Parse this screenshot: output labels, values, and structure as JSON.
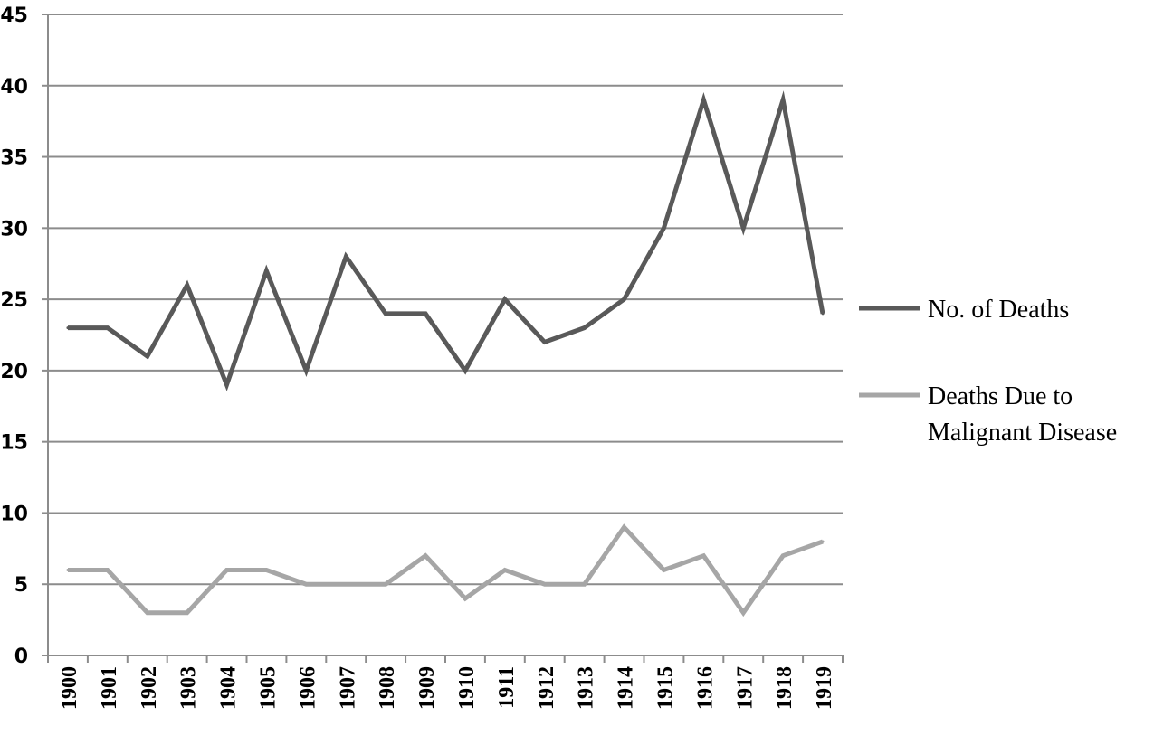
{
  "chart_data": {
    "type": "line",
    "title": "",
    "xlabel": "",
    "ylabel": "",
    "ylim": [
      0,
      45
    ],
    "yticks": [
      0,
      5,
      10,
      15,
      20,
      25,
      30,
      35,
      40,
      45
    ],
    "grid": true,
    "legend_position": "right",
    "categories": [
      "1900",
      "1901",
      "1902",
      "1903",
      "1904",
      "1905",
      "1906",
      "1907",
      "1908",
      "1909",
      "1910",
      "1911",
      "1912",
      "1913",
      "1914",
      "1915",
      "1916",
      "1917",
      "1918",
      "1919"
    ],
    "series": [
      {
        "name": "No. of Deaths",
        "name_lines": [
          "No. of Deaths"
        ],
        "color": "#595959",
        "values": [
          23,
          23,
          21,
          26,
          19,
          27,
          20,
          28,
          24,
          24,
          20,
          25,
          22,
          23,
          25,
          30,
          39,
          30,
          39,
          24
        ]
      },
      {
        "name": "Deaths Due to Malignant Disease",
        "name_lines": [
          "Deaths Due to",
          "Malignant Disease"
        ],
        "color": "#a6a6a6",
        "values": [
          6,
          6,
          3,
          3,
          6,
          6,
          5,
          5,
          5,
          7,
          4,
          6,
          5,
          5,
          9,
          6,
          7,
          3,
          7,
          8
        ]
      }
    ]
  }
}
